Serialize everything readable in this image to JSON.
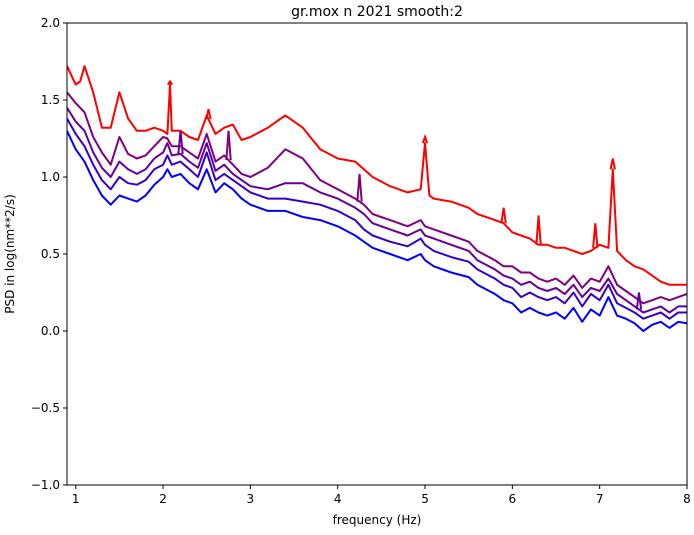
{
  "chart_data": {
    "type": "line",
    "title": "gr.mox n 2021 smooth:2",
    "xlabel": "frequency (Hz)",
    "ylabel": "PSD in log(nm**2/s)",
    "xlim": [
      0.9,
      8.0
    ],
    "ylim": [
      -1.0,
      2.0
    ],
    "xticks": [
      1,
      2,
      3,
      4,
      5,
      6,
      7,
      8
    ],
    "yticks": [
      -1.0,
      -0.5,
      0.0,
      0.5,
      1.0,
      1.5,
      2.0
    ],
    "xtick_labels": [
      "1",
      "2",
      "3",
      "4",
      "5",
      "6",
      "7",
      "8"
    ],
    "ytick_labels": [
      "−1.0",
      "−0.5",
      "0.0",
      "0.5",
      "1.0",
      "1.5",
      "2.0"
    ],
    "grid": false,
    "legend": "none",
    "series": [
      {
        "color": "#0000ff",
        "x": [
          0.9,
          1.0,
          1.1,
          1.2,
          1.3,
          1.4,
          1.5,
          1.6,
          1.7,
          1.8,
          1.9,
          2.0,
          2.05,
          2.1,
          2.2,
          2.3,
          2.4,
          2.5,
          2.6,
          2.7,
          2.8,
          2.9,
          3.0,
          3.2,
          3.4,
          3.6,
          3.8,
          4.0,
          4.2,
          4.3,
          4.4,
          4.6,
          4.8,
          4.95,
          5.0,
          5.1,
          5.3,
          5.5,
          5.6,
          5.8,
          5.9,
          6.0,
          6.1,
          6.2,
          6.3,
          6.4,
          6.5,
          6.6,
          6.7,
          6.8,
          6.9,
          7.0,
          7.1,
          7.2,
          7.3,
          7.4,
          7.5,
          7.6,
          7.7,
          7.8,
          7.9,
          8.0
        ],
        "y": [
          1.3,
          1.18,
          1.1,
          0.98,
          0.88,
          0.82,
          0.88,
          0.86,
          0.84,
          0.88,
          0.95,
          1.0,
          1.05,
          1.0,
          1.02,
          0.96,
          0.92,
          1.05,
          0.9,
          0.96,
          0.92,
          0.86,
          0.82,
          0.78,
          0.78,
          0.74,
          0.72,
          0.68,
          0.62,
          0.58,
          0.54,
          0.5,
          0.46,
          0.5,
          0.46,
          0.42,
          0.38,
          0.35,
          0.3,
          0.24,
          0.2,
          0.18,
          0.12,
          0.15,
          0.12,
          0.1,
          0.12,
          0.08,
          0.15,
          0.06,
          0.14,
          0.1,
          0.22,
          0.1,
          0.08,
          0.05,
          0.0,
          0.04,
          0.06,
          0.02,
          0.06,
          0.05
        ]
      },
      {
        "color": "#3300cc",
        "x": [
          0.9,
          1.0,
          1.1,
          1.2,
          1.3,
          1.4,
          1.5,
          1.6,
          1.7,
          1.8,
          1.9,
          2.0,
          2.05,
          2.1,
          2.2,
          2.3,
          2.4,
          2.5,
          2.6,
          2.7,
          2.8,
          2.9,
          3.0,
          3.2,
          3.4,
          3.6,
          3.8,
          4.0,
          4.2,
          4.3,
          4.4,
          4.6,
          4.8,
          4.95,
          5.0,
          5.1,
          5.3,
          5.5,
          5.6,
          5.8,
          5.9,
          6.0,
          6.1,
          6.2,
          6.3,
          6.4,
          6.5,
          6.6,
          6.7,
          6.8,
          6.9,
          7.0,
          7.1,
          7.2,
          7.3,
          7.4,
          7.5,
          7.6,
          7.7,
          7.8,
          7.9,
          8.0
        ],
        "y": [
          1.38,
          1.28,
          1.2,
          1.08,
          0.98,
          0.92,
          1.0,
          0.96,
          0.95,
          0.98,
          1.05,
          1.08,
          1.14,
          1.08,
          1.1,
          1.05,
          1.0,
          1.16,
          0.98,
          1.02,
          0.98,
          0.94,
          0.9,
          0.86,
          0.86,
          0.84,
          0.82,
          0.78,
          0.72,
          0.66,
          0.62,
          0.58,
          0.55,
          0.6,
          0.56,
          0.52,
          0.48,
          0.45,
          0.4,
          0.34,
          0.3,
          0.28,
          0.22,
          0.25,
          0.22,
          0.2,
          0.22,
          0.18,
          0.25,
          0.16,
          0.24,
          0.2,
          0.3,
          0.18,
          0.15,
          0.12,
          0.08,
          0.1,
          0.12,
          0.08,
          0.12,
          0.12
        ]
      },
      {
        "color": "#660099",
        "x": [
          0.9,
          1.0,
          1.1,
          1.2,
          1.3,
          1.4,
          1.5,
          1.6,
          1.7,
          1.8,
          1.9,
          2.0,
          2.05,
          2.1,
          2.2,
          2.3,
          2.4,
          2.5,
          2.6,
          2.7,
          2.8,
          2.9,
          3.0,
          3.2,
          3.4,
          3.6,
          3.8,
          4.0,
          4.2,
          4.3,
          4.4,
          4.6,
          4.8,
          4.95,
          5.0,
          5.1,
          5.3,
          5.5,
          5.6,
          5.8,
          5.9,
          6.0,
          6.1,
          6.2,
          6.3,
          6.4,
          6.5,
          6.6,
          6.7,
          6.8,
          6.9,
          7.0,
          7.1,
          7.2,
          7.3,
          7.4,
          7.5,
          7.6,
          7.7,
          7.8,
          7.9,
          8.0
        ],
        "y": [
          1.45,
          1.36,
          1.3,
          1.16,
          1.06,
          1.0,
          1.1,
          1.05,
          1.02,
          1.05,
          1.12,
          1.16,
          1.22,
          1.14,
          1.15,
          1.1,
          1.06,
          1.22,
          1.04,
          1.08,
          1.02,
          0.98,
          0.94,
          0.92,
          0.96,
          0.96,
          0.9,
          0.86,
          0.8,
          0.76,
          0.7,
          0.66,
          0.62,
          0.66,
          0.62,
          0.6,
          0.56,
          0.52,
          0.46,
          0.4,
          0.36,
          0.34,
          0.3,
          0.32,
          0.28,
          0.26,
          0.28,
          0.24,
          0.3,
          0.22,
          0.28,
          0.26,
          0.34,
          0.24,
          0.2,
          0.16,
          0.12,
          0.14,
          0.16,
          0.12,
          0.16,
          0.16
        ]
      },
      {
        "color": "#800080",
        "x": [
          0.9,
          1.0,
          1.1,
          1.2,
          1.3,
          1.4,
          1.5,
          1.6,
          1.7,
          1.8,
          1.9,
          2.0,
          2.05,
          2.1,
          2.2,
          2.3,
          2.4,
          2.5,
          2.6,
          2.7,
          2.8,
          2.9,
          3.0,
          3.2,
          3.4,
          3.6,
          3.8,
          4.0,
          4.2,
          4.3,
          4.4,
          4.6,
          4.8,
          4.95,
          5.0,
          5.1,
          5.3,
          5.5,
          5.6,
          5.8,
          5.9,
          6.0,
          6.1,
          6.2,
          6.3,
          6.4,
          6.5,
          6.6,
          6.7,
          6.8,
          6.9,
          7.0,
          7.1,
          7.2,
          7.3,
          7.4,
          7.5,
          7.6,
          7.7,
          7.8,
          7.9,
          8.0
        ],
        "y": [
          1.55,
          1.48,
          1.42,
          1.26,
          1.16,
          1.08,
          1.26,
          1.15,
          1.12,
          1.14,
          1.2,
          1.26,
          1.25,
          1.2,
          1.2,
          1.16,
          1.12,
          1.28,
          1.1,
          1.14,
          1.08,
          1.02,
          1.0,
          1.06,
          1.18,
          1.12,
          0.98,
          0.92,
          0.86,
          0.82,
          0.76,
          0.72,
          0.68,
          0.72,
          0.68,
          0.66,
          0.62,
          0.58,
          0.52,
          0.46,
          0.42,
          0.42,
          0.38,
          0.38,
          0.34,
          0.32,
          0.34,
          0.3,
          0.36,
          0.28,
          0.34,
          0.32,
          0.42,
          0.3,
          0.26,
          0.22,
          0.18,
          0.2,
          0.22,
          0.2,
          0.22,
          0.24
        ]
      },
      {
        "color": "#ff0000",
        "x": [
          0.9,
          1.0,
          1.05,
          1.1,
          1.2,
          1.3,
          1.4,
          1.5,
          1.6,
          1.7,
          1.8,
          1.9,
          2.0,
          2.05,
          2.08,
          2.1,
          2.2,
          2.3,
          2.4,
          2.5,
          2.6,
          2.7,
          2.8,
          2.9,
          3.0,
          3.2,
          3.4,
          3.6,
          3.8,
          4.0,
          4.2,
          4.4,
          4.6,
          4.8,
          4.95,
          5.0,
          5.05,
          5.1,
          5.3,
          5.5,
          5.6,
          5.8,
          5.9,
          6.0,
          6.1,
          6.2,
          6.3,
          6.4,
          6.5,
          6.6,
          6.7,
          6.8,
          6.9,
          7.0,
          7.1,
          7.15,
          7.2,
          7.3,
          7.4,
          7.5,
          7.6,
          7.7,
          7.8,
          7.9,
          8.0
        ],
        "y": [
          1.72,
          1.6,
          1.62,
          1.72,
          1.55,
          1.32,
          1.32,
          1.55,
          1.38,
          1.3,
          1.3,
          1.32,
          1.3,
          1.28,
          1.6,
          1.3,
          1.3,
          1.26,
          1.24,
          1.4,
          1.28,
          1.32,
          1.34,
          1.24,
          1.26,
          1.32,
          1.4,
          1.32,
          1.18,
          1.12,
          1.1,
          1.0,
          0.94,
          0.9,
          0.92,
          1.22,
          0.88,
          0.86,
          0.84,
          0.8,
          0.76,
          0.72,
          0.7,
          0.64,
          0.62,
          0.6,
          0.56,
          0.56,
          0.54,
          0.54,
          0.52,
          0.5,
          0.52,
          0.56,
          0.54,
          1.05,
          0.52,
          0.46,
          0.42,
          0.4,
          0.36,
          0.32,
          0.3,
          0.3,
          0.3
        ]
      }
    ],
    "spikes": [
      {
        "series": 4,
        "x": 2.08,
        "y": 1.62
      },
      {
        "series": 4,
        "x": 2.52,
        "y": 1.44
      },
      {
        "series": 4,
        "x": 5.0,
        "y": 1.26
      },
      {
        "series": 4,
        "x": 5.9,
        "y": 0.8
      },
      {
        "series": 4,
        "x": 6.3,
        "y": 0.75
      },
      {
        "series": 4,
        "x": 7.15,
        "y": 1.12
      },
      {
        "series": 4,
        "x": 6.95,
        "y": 0.7
      },
      {
        "series": 3,
        "x": 2.75,
        "y": 1.3
      },
      {
        "series": 3,
        "x": 4.25,
        "y": 1.02
      },
      {
        "series": 2,
        "x": 2.2,
        "y": 1.3
      },
      {
        "series": 2,
        "x": 7.45,
        "y": 0.25
      }
    ]
  }
}
